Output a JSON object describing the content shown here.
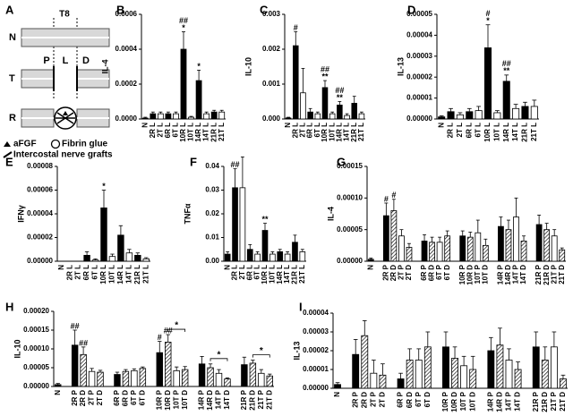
{
  "diagram": {
    "panel": "A",
    "rows": [
      "N",
      "T",
      "R"
    ],
    "level": "T8",
    "segments": [
      "P",
      "L",
      "D"
    ],
    "legend": [
      "aFGF",
      "Fibrin glue",
      "Intercostal nerve grafts"
    ]
  },
  "chart_data": [
    {
      "type": "bar",
      "panel": "B",
      "y_label": "IL-4",
      "categories": [
        "N",
        "2R L",
        "2T L",
        "6R L",
        "6T L",
        "10R L",
        "10T L",
        "14R L",
        "14T L",
        "21R L",
        "21T L"
      ],
      "values": [
        5e-06,
        3e-05,
        3e-05,
        3e-05,
        3e-05,
        0.0004,
        1e-05,
        0.00022,
        3e-05,
        4e-05,
        4e-05
      ],
      "errors": [
        5e-06,
        1e-05,
        1e-05,
        1e-05,
        1e-05,
        0.0001,
        5e-06,
        6e-05,
        1e-05,
        1e-05,
        1e-05
      ],
      "styles": [
        "solid",
        "solid",
        "open",
        "solid",
        "open",
        "solid",
        "open",
        "solid",
        "open",
        "solid",
        "open"
      ],
      "annotations": [
        null,
        null,
        null,
        null,
        null,
        [
          "##",
          "*"
        ],
        null,
        [
          "*"
        ],
        null,
        null,
        null
      ],
      "ylim": [
        0,
        0.0006
      ],
      "yticks": [
        {
          "value": 0,
          "label": "0.0000"
        },
        {
          "value": 0.0002,
          "label": "0.0002"
        },
        {
          "value": 0.0004,
          "label": "0.0004"
        },
        {
          "value": 0.0006,
          "label": "0.0006"
        }
      ]
    },
    {
      "type": "bar",
      "panel": "C",
      "y_label": "IL-10",
      "categories": [
        "N",
        "2R L",
        "2T L",
        "6R L",
        "6T L",
        "10R L",
        "10T L",
        "14R L",
        "14T L",
        "21R L",
        "21T L"
      ],
      "values": [
        3e-05,
        0.0021,
        0.00075,
        0.0002,
        0.00015,
        0.0009,
        0.00015,
        0.0004,
        0.0001,
        0.00045,
        0.00015
      ],
      "errors": [
        2e-05,
        0.0004,
        0.0007,
        0.0001,
        5e-05,
        0.0002,
        5e-05,
        0.0001,
        5e-05,
        0.0002,
        5e-05
      ],
      "styles": [
        "solid",
        "solid",
        "open",
        "solid",
        "open",
        "solid",
        "open",
        "solid",
        "open",
        "solid",
        "open"
      ],
      "annotations": [
        null,
        [
          "#"
        ],
        null,
        null,
        null,
        [
          "##",
          "**"
        ],
        null,
        [
          "##",
          "**"
        ],
        null,
        null,
        null
      ],
      "ylim": [
        0,
        0.003
      ],
      "yticks": [
        {
          "value": 0,
          "label": "0.000"
        },
        {
          "value": 0.001,
          "label": "0.001"
        },
        {
          "value": 0.002,
          "label": "0.002"
        },
        {
          "value": 0.003,
          "label": "0.003"
        }
      ]
    },
    {
      "type": "bar",
      "panel": "D",
      "y_label": "IL-13",
      "categories": [
        "N",
        "2R L",
        "2T L",
        "6R L",
        "6T L",
        "10R L",
        "10T L",
        "14R L",
        "14T L",
        "21R L",
        "21T L"
      ],
      "values": [
        1e-06,
        3.5e-06,
        2e-06,
        3.5e-06,
        4e-06,
        3.4e-05,
        3e-06,
        1.8e-05,
        5e-06,
        6e-06,
        6e-06
      ],
      "errors": [
        5e-07,
        1.5e-06,
        1e-06,
        1.5e-06,
        2e-06,
        1.1e-05,
        1e-06,
        3e-06,
        2e-06,
        2e-06,
        3e-06
      ],
      "styles": [
        "solid",
        "solid",
        "open",
        "solid",
        "open",
        "solid",
        "open",
        "solid",
        "open",
        "solid",
        "open"
      ],
      "annotations": [
        null,
        null,
        null,
        null,
        null,
        [
          "#",
          "*"
        ],
        null,
        [
          "##",
          "**"
        ],
        null,
        null,
        null
      ],
      "ylim": [
        0,
        5e-05
      ],
      "yticks": [
        {
          "value": 0,
          "label": "0.00000"
        },
        {
          "value": 1e-05,
          "label": "0.00001"
        },
        {
          "value": 2e-05,
          "label": "0.00002"
        },
        {
          "value": 3e-05,
          "label": "0.00003"
        },
        {
          "value": 4e-05,
          "label": "0.00004"
        },
        {
          "value": 5e-05,
          "label": "0.00005"
        }
      ]
    },
    {
      "type": "bar",
      "panel": "E",
      "y_label": "IFNγ",
      "categories": [
        "N",
        "2R L",
        "2T L",
        "6R L",
        "6T L",
        "10R L",
        "10T L",
        "14R L",
        "14T L",
        "21R L",
        "21T L"
      ],
      "values": [
        0,
        0,
        0,
        5e-06,
        1e-06,
        4.5e-05,
        4e-06,
        2.2e-05,
        7e-06,
        5e-06,
        2e-06
      ],
      "errors": [
        null,
        null,
        null,
        3e-06,
        1e-06,
        1.5e-05,
        2e-06,
        8e-06,
        3e-06,
        2e-06,
        1e-06
      ],
      "styles": [
        "solid",
        "solid",
        "open",
        "solid",
        "open",
        "solid",
        "open",
        "solid",
        "open",
        "solid",
        "open"
      ],
      "annotations": [
        null,
        null,
        null,
        null,
        null,
        [
          "*"
        ],
        null,
        null,
        null,
        null,
        null
      ],
      "ylim": [
        0,
        8e-05
      ],
      "yticks": [
        {
          "value": 0,
          "label": "0.00000"
        },
        {
          "value": 2e-05,
          "label": "0.00002"
        },
        {
          "value": 4e-05,
          "label": "0.00004"
        },
        {
          "value": 6e-05,
          "label": "0.00006"
        },
        {
          "value": 8e-05,
          "label": "0.00008"
        }
      ]
    },
    {
      "type": "bar",
      "panel": "F",
      "y_label": "TNFα",
      "categories": [
        "N",
        "2R L",
        "2T L",
        "6R L",
        "6T L",
        "10R L",
        "10T L",
        "14R L",
        "14T L",
        "21R L",
        "21T L"
      ],
      "values": [
        0.003,
        0.031,
        0.031,
        0.005,
        0.003,
        0.013,
        0.003,
        0.004,
        0.003,
        0.008,
        0.004
      ],
      "errors": [
        0.001,
        0.008,
        0.013,
        0.002,
        0.001,
        0.003,
        0.001,
        0.001,
        0.001,
        0.003,
        0.001
      ],
      "styles": [
        "solid",
        "solid",
        "open",
        "solid",
        "open",
        "solid",
        "open",
        "solid",
        "open",
        "solid",
        "open"
      ],
      "annotations": [
        null,
        [
          "##"
        ],
        null,
        null,
        null,
        [
          "**"
        ],
        null,
        null,
        null,
        null,
        null
      ],
      "ylim": [
        0,
        0.04
      ],
      "yticks": [
        {
          "value": 0,
          "label": "0.00"
        },
        {
          "value": 0.01,
          "label": "0.01"
        },
        {
          "value": 0.02,
          "label": "0.02"
        },
        {
          "value": 0.03,
          "label": "0.03"
        },
        {
          "value": 0.04,
          "label": "0.04"
        }
      ]
    },
    {
      "type": "bar",
      "panel": "G",
      "y_label": "IL-4",
      "categories": [
        "N",
        null,
        "2R P",
        "2R D",
        "2T P",
        "2T D",
        null,
        "6R P",
        "6R D",
        "6T P",
        "6T D",
        null,
        "10R P",
        "10R D",
        "10T P",
        "10T D",
        null,
        "14R P",
        "14R D",
        "14T P",
        "14T D",
        null,
        "21R P",
        "21R D",
        "21T P",
        "21T D"
      ],
      "values": [
        3e-06,
        null,
        7.2e-05,
        8e-05,
        4e-05,
        2.2e-05,
        null,
        3.2e-05,
        3e-05,
        3e-05,
        4e-05,
        null,
        4e-05,
        3.8e-05,
        4.5e-05,
        2.5e-05,
        null,
        5.5e-05,
        5e-05,
        7e-05,
        3.2e-05,
        null,
        5.8e-05,
        5e-05,
        4e-05,
        1.8e-05
      ],
      "errors": [
        2e-06,
        null,
        2e-05,
        1.8e-05,
        1e-05,
        6e-06,
        null,
        1e-05,
        8e-06,
        8e-06,
        8e-06,
        null,
        8e-06,
        8e-06,
        2e-05,
        1e-05,
        null,
        1.5e-05,
        1.5e-05,
        3e-05,
        8e-06,
        null,
        1.5e-05,
        1e-05,
        1e-05,
        3e-06
      ],
      "styles": [
        "solid",
        null,
        "solid",
        "hatched",
        "open",
        "hatched",
        null,
        "solid",
        "hatched",
        "open",
        "hatched",
        null,
        "solid",
        "hatched",
        "open",
        "hatched",
        null,
        "solid",
        "hatched",
        "open",
        "hatched",
        null,
        "solid",
        "hatched",
        "open",
        "hatched"
      ],
      "annotations": [
        null,
        null,
        [
          "#"
        ],
        [
          "#"
        ],
        null,
        null,
        null,
        null,
        null,
        null,
        null,
        null,
        null,
        null,
        null,
        null,
        null,
        null,
        null,
        null,
        null,
        null,
        null,
        null,
        null,
        null
      ],
      "ylim": [
        0,
        0.00015
      ],
      "yticks": [
        {
          "value": 0,
          "label": "0.00000"
        },
        {
          "value": 5e-05,
          "label": "0.00005"
        },
        {
          "value": 0.0001,
          "label": "0.00010"
        },
        {
          "value": 0.00015,
          "label": "0.00015"
        }
      ]
    },
    {
      "type": "bar",
      "panel": "H",
      "y_label": "IL-10",
      "categories": [
        "N",
        null,
        "2R P",
        "2R D",
        "2T P",
        "2T D",
        null,
        "6R P",
        "6R D",
        "6T P",
        "6T D",
        null,
        "10R P",
        "10R D",
        "10T P",
        "10T D",
        null,
        "14R P",
        "14R D",
        "14T P",
        "14T D",
        null,
        "21R P",
        "21R D",
        "21T P",
        "21T D"
      ],
      "values": [
        5e-06,
        null,
        0.00011,
        8.5e-05,
        4e-05,
        3.8e-05,
        null,
        3.2e-05,
        4e-05,
        4.2e-05,
        4.8e-05,
        null,
        9e-05,
        0.000118,
        4.2e-05,
        4.5e-05,
        null,
        6e-05,
        5e-05,
        3.5e-05,
        2e-05,
        null,
        5.8e-05,
        6.2e-05,
        3.5e-05,
        2.8e-05
      ],
      "errors": [
        3e-06,
        null,
        4e-05,
        2e-05,
        8e-06,
        5e-06,
        null,
        6e-06,
        5e-06,
        5e-06,
        4e-06,
        null,
        3e-05,
        2e-05,
        1e-05,
        8e-06,
        null,
        2e-05,
        1e-05,
        1e-05,
        3e-06,
        null,
        2e-05,
        8e-06,
        1e-05,
        5e-06
      ],
      "styles": [
        "solid",
        null,
        "solid",
        "hatched",
        "open",
        "hatched",
        null,
        "solid",
        "hatched",
        "open",
        "hatched",
        null,
        "solid",
        "hatched",
        "open",
        "hatched",
        null,
        "solid",
        "hatched",
        "open",
        "hatched",
        null,
        "solid",
        "hatched",
        "open",
        "hatched"
      ],
      "annotations": [
        null,
        null,
        [
          "##"
        ],
        [
          "##"
        ],
        null,
        null,
        null,
        null,
        null,
        null,
        null,
        null,
        [
          "#"
        ],
        [
          "##"
        ],
        null,
        null,
        null,
        null,
        null,
        null,
        null,
        null,
        null,
        null,
        null,
        null
      ],
      "brackets": [
        {
          "from": "10R D",
          "to": "10T D",
          "text": "*"
        },
        {
          "from": "14R D",
          "to": "14T D",
          "text": "*"
        },
        {
          "from": "21R D",
          "to": "21T D",
          "text": "*"
        }
      ],
      "ylim": [
        0,
        0.0002
      ],
      "yticks": [
        {
          "value": 0,
          "label": "0.00000"
        },
        {
          "value": 5e-05,
          "label": "0.00005"
        },
        {
          "value": 0.0001,
          "label": "0.00010"
        },
        {
          "value": 0.00015,
          "label": "0.00015"
        },
        {
          "value": 0.0002,
          "label": "0.00020"
        }
      ]
    },
    {
      "type": "bar",
      "panel": "I",
      "y_label": "IL-13",
      "categories": [
        "N",
        null,
        "2R P",
        "2R D",
        "2T P",
        "2T D",
        null,
        "6R P",
        "6R D",
        "6T P",
        "6T D",
        null,
        "10R P",
        "10R D",
        "10T P",
        "10T D",
        null,
        "14R P",
        "14R D",
        "14T P",
        "14T D",
        null,
        "21R P",
        "21R D",
        "21T P",
        "21T D"
      ],
      "values": [
        2e-06,
        null,
        1.8e-05,
        2.8e-05,
        8e-06,
        7e-06,
        null,
        5e-06,
        1.5e-05,
        1.5e-05,
        2.2e-05,
        null,
        2.2e-05,
        1.6e-05,
        1.2e-05,
        1e-05,
        null,
        2e-05,
        2.3e-05,
        1.5e-05,
        1e-05,
        null,
        2.2e-05,
        1.5e-05,
        2.2e-05,
        5e-06
      ],
      "errors": [
        1e-06,
        null,
        8e-06,
        8e-06,
        7e-06,
        6e-06,
        null,
        3e-06,
        6e-06,
        6e-06,
        8e-06,
        null,
        8e-06,
        6e-06,
        5e-06,
        7e-06,
        null,
        7e-06,
        9e-06,
        6e-06,
        4e-06,
        null,
        8e-06,
        7e-06,
        8e-06,
        2e-06
      ],
      "styles": [
        "solid",
        null,
        "solid",
        "hatched",
        "open",
        "hatched",
        null,
        "solid",
        "hatched",
        "open",
        "hatched",
        null,
        "solid",
        "hatched",
        "open",
        "hatched",
        null,
        "solid",
        "hatched",
        "open",
        "hatched",
        null,
        "solid",
        "hatched",
        "open",
        "hatched"
      ],
      "ylim": [
        0,
        4e-05
      ],
      "yticks": [
        {
          "value": 0,
          "label": "0.00000"
        },
        {
          "value": 1e-05,
          "label": "0.00001"
        },
        {
          "value": 2e-05,
          "label": "0.00002"
        },
        {
          "value": 3e-05,
          "label": "0.00003"
        },
        {
          "value": 4e-05,
          "label": "0.00004"
        }
      ]
    }
  ]
}
